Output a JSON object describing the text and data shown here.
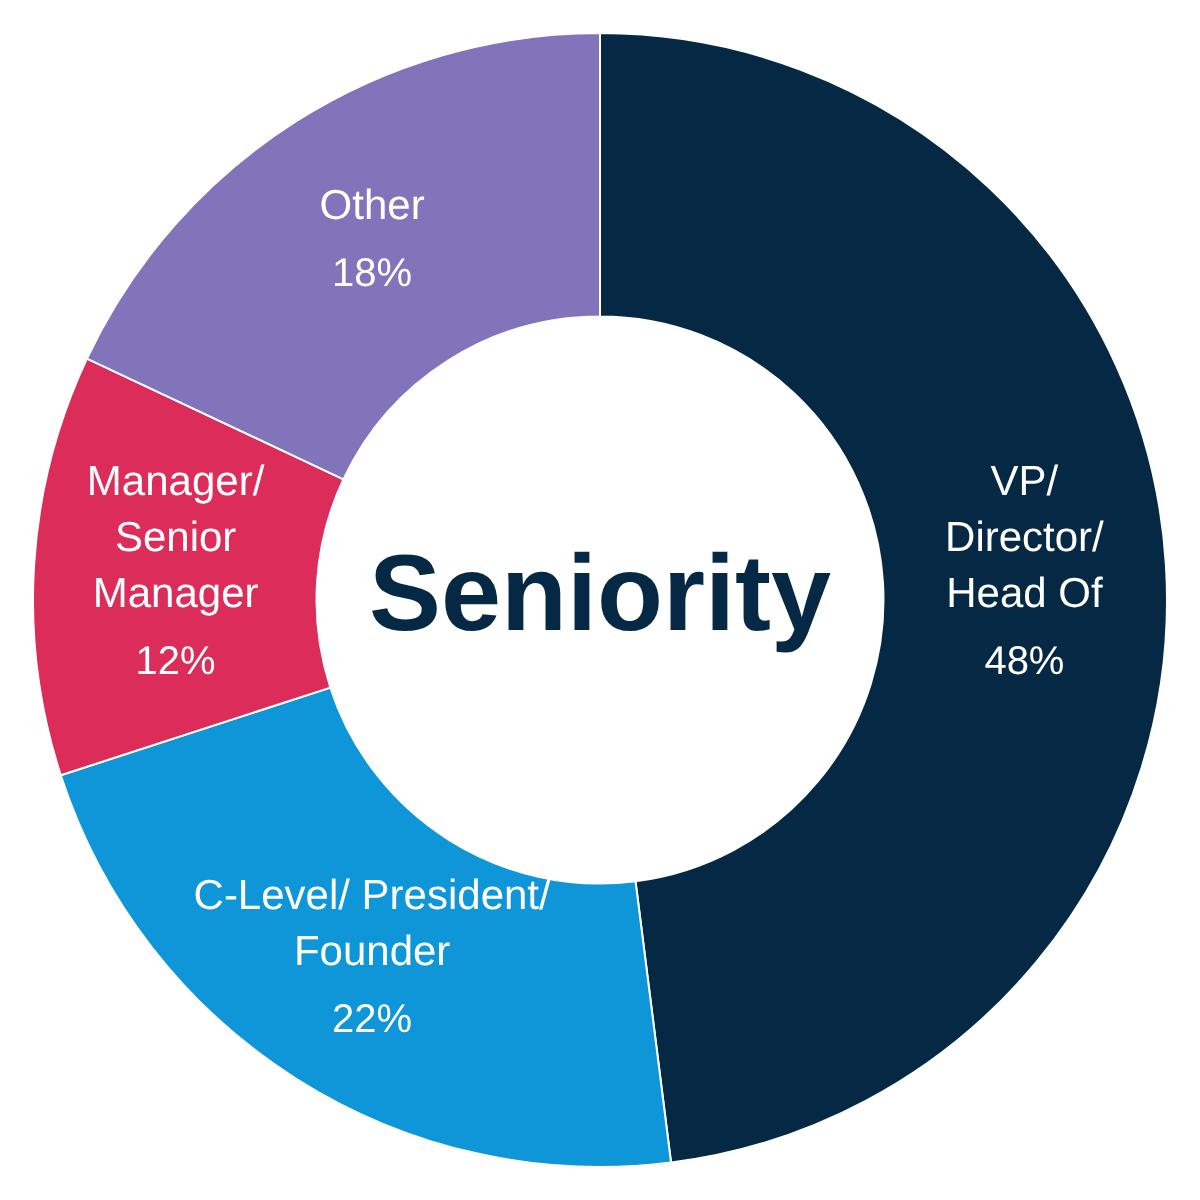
{
  "chart_data": {
    "type": "donut",
    "title": "Seniority",
    "categories": [
      "VP/ Director/ Head Of",
      "C-Level/ President/ Founder",
      "Manager/ Senior Manager",
      "Other"
    ],
    "values": [
      48,
      22,
      12,
      18
    ],
    "value_labels": [
      "48%",
      "22%",
      "12%",
      "18%"
    ],
    "colors": [
      "#052944",
      "#0e96d8",
      "#dc2d5a",
      "#8274bb"
    ]
  }
}
